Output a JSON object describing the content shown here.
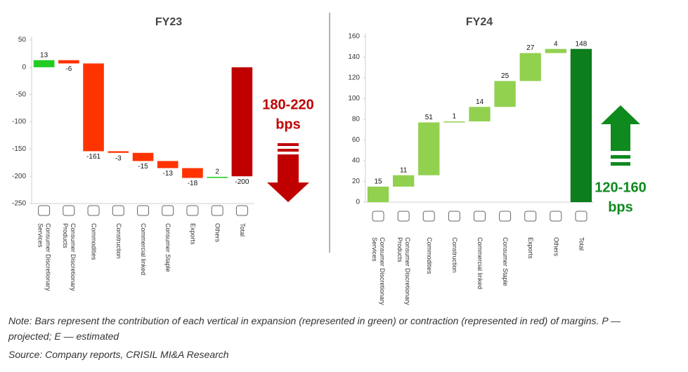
{
  "chart_data": [
    {
      "type": "waterfall",
      "title": "FY23",
      "categories": [
        "Consumer Discretionary Services",
        "Consumer Discretionary Products",
        "Commodities",
        "Construction",
        "Commercial linked",
        "Consumer Staple",
        "Exports",
        "Others",
        "Total"
      ],
      "values": [
        13,
        -6,
        -161,
        -3,
        -15,
        -13,
        -18,
        2,
        -200
      ],
      "total_last": true,
      "color_increase": "#22cc22",
      "color_decrease": "#ff3300",
      "color_total": "#c00000",
      "ylim": [
        -250,
        50
      ],
      "yticks": [
        50,
        0,
        -50,
        -100,
        -150,
        -200,
        -250
      ],
      "annotation": {
        "lines": [
          "180-220",
          "bps"
        ],
        "color": "#c00000",
        "direction": "down"
      }
    },
    {
      "type": "waterfall",
      "title": "FY24",
      "categories": [
        "Consumer Discretionary Services",
        "Consumer Discretionary Products",
        "Commodities",
        "Construction",
        "Commercial linked",
        "Consumer Staple",
        "Exports",
        "Others",
        "Total"
      ],
      "values": [
        15,
        11,
        51,
        1,
        14,
        25,
        27,
        4,
        148
      ],
      "total_last": true,
      "color_increase": "#92d050",
      "color_decrease": "#ff3300",
      "color_total": "#0e7d1d",
      "ylim": [
        0,
        160
      ],
      "yticks": [
        0,
        20,
        40,
        60,
        80,
        100,
        120,
        140,
        160
      ],
      "annotation": {
        "lines": [
          "120-160",
          "bps"
        ],
        "color": "#0e8a1e",
        "direction": "up"
      }
    }
  ],
  "note": "Note: Bars represent the contribution of each vertical in expansion (represented in green) or contraction (represented in red) of margins. P — projected; E — estimated",
  "source": "Source: Company reports, CRISIL MI&A Research"
}
